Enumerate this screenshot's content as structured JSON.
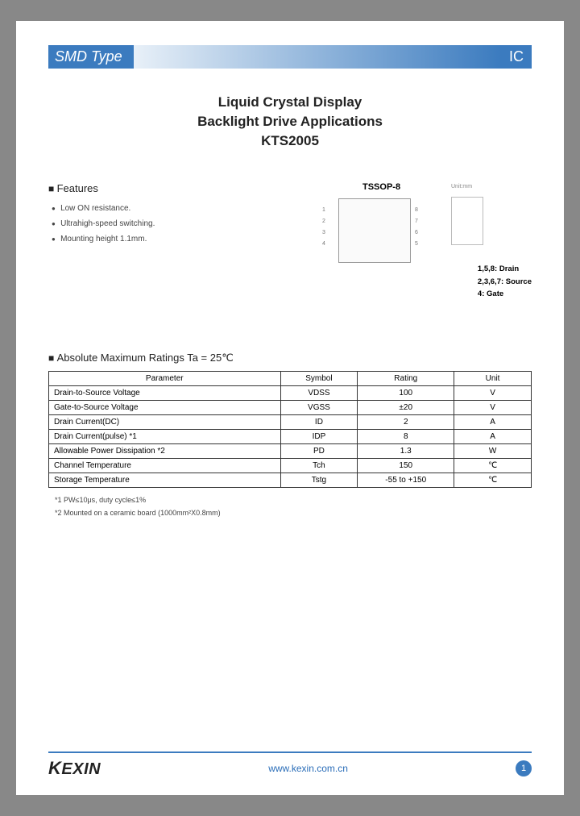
{
  "header": {
    "left": "SMD Type",
    "right": "IC"
  },
  "title": {
    "line1": "Liquid Crystal Display",
    "line2": "Backlight Drive Applications",
    "line3": "KTS2005"
  },
  "features": {
    "heading": "Features",
    "items": [
      "Low ON resistance.",
      "Ultrahigh-speed switching.",
      "Mounting height 1.1mm."
    ]
  },
  "package": {
    "label": "TSSOP-8",
    "unit_label": "Unit:mm",
    "pin_legend": [
      {
        "pins": "1,5,8:",
        "name": "Drain"
      },
      {
        "pins": "2,3,6,7:",
        "name": "Source"
      },
      {
        "pins": "4:",
        "name": "Gate"
      }
    ]
  },
  "ratings": {
    "heading": "Absolute Maximum Ratings Ta = 25℃",
    "columns": [
      "Parameter",
      "Symbol",
      "Rating",
      "Unit"
    ],
    "rows": [
      [
        "Drain-to-Source Voltage",
        "VDSS",
        "100",
        "V"
      ],
      [
        "Gate-to-Source Voltage",
        "VGSS",
        "±20",
        "V"
      ],
      [
        "Drain Current(DC)",
        "ID",
        "2",
        "A"
      ],
      [
        "Drain Current(pulse) *1",
        "IDP",
        "8",
        "A"
      ],
      [
        "Allowable Power Dissipation *2",
        "PD",
        "1.3",
        "W"
      ],
      [
        "Channel Temperature",
        "Tch",
        "150",
        "℃"
      ],
      [
        "Storage Temperature",
        "Tstg",
        "-55 to +150",
        "℃"
      ]
    ],
    "footnotes": [
      "*1 PW≤10μs, duty cycle≤1%",
      "*2 Mounted on a ceramic board (1000mm²X0.8mm)"
    ]
  },
  "footer": {
    "logo": "KEXIN",
    "url": "www.kexin.com.cn",
    "page": "1"
  }
}
